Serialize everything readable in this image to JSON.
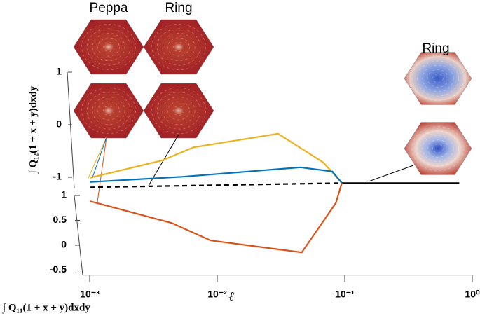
{
  "chart_data": {
    "type": "line",
    "xlabel": "ℓ",
    "ylabel": "∫ Q₁₂(1 + x + y)dxdy",
    "zlabel": "∫ Q₁₁(1 + x + y)dxdy",
    "xscale": "log",
    "xlim": [
      0.001,
      1
    ],
    "xticks": [
      {
        "value": 0.001,
        "label": "10⁻³"
      },
      {
        "value": 0.01,
        "label": "10⁻²"
      },
      {
        "value": 0.1,
        "label": "10⁻¹"
      },
      {
        "value": 1,
        "label": "10⁰"
      }
    ],
    "ylim": [
      -1.1,
      1
    ],
    "yticks": [
      1,
      0,
      -1
    ],
    "zlim": [
      -0.6,
      1
    ],
    "zticks": [
      1,
      0.5,
      0,
      -0.5
    ],
    "annotations": [
      "Peppa",
      "Ring",
      "Ring"
    ],
    "series": [
      {
        "color": "#edb120",
        "style": "solid",
        "x": [
          0.001,
          0.0037,
          0.0065,
          0.03,
          0.068,
          0.095
        ],
        "y": [
          -1.01,
          -0.68,
          -0.43,
          -0.17,
          -0.72,
          -1.11
        ],
        "z": [
          1,
          1,
          1,
          1,
          1,
          1
        ]
      },
      {
        "color": "#0072bd",
        "style": "solid",
        "x": [
          0.001,
          0.0053,
          0.045,
          0.08,
          0.095
        ],
        "y": [
          -1.09,
          -0.99,
          -0.81,
          -0.89,
          -1.11
        ],
        "z": [
          1,
          1,
          1,
          1,
          1
        ]
      },
      {
        "color": "#000000",
        "style": "dashed",
        "x": [
          0.001,
          0.095
        ],
        "y": [
          -1.19,
          -1.11
        ],
        "z": [
          1,
          1
        ]
      },
      {
        "color": "#000000",
        "style": "solid",
        "x": [
          0.095,
          0.79
        ],
        "y": [
          -1.11,
          -1.11
        ],
        "z": [
          1,
          1
        ]
      },
      {
        "color": "#d95319",
        "style": "solid",
        "x": [
          0.001,
          0.0044,
          0.0089,
          0.046,
          0.085,
          0.095
        ],
        "y": [
          -1,
          -1,
          -1,
          -1,
          -1,
          -1
        ],
        "z": [
          0.52,
          0.08,
          -0.27,
          -0.51,
          0.48,
          0.89
        ]
      }
    ]
  }
}
